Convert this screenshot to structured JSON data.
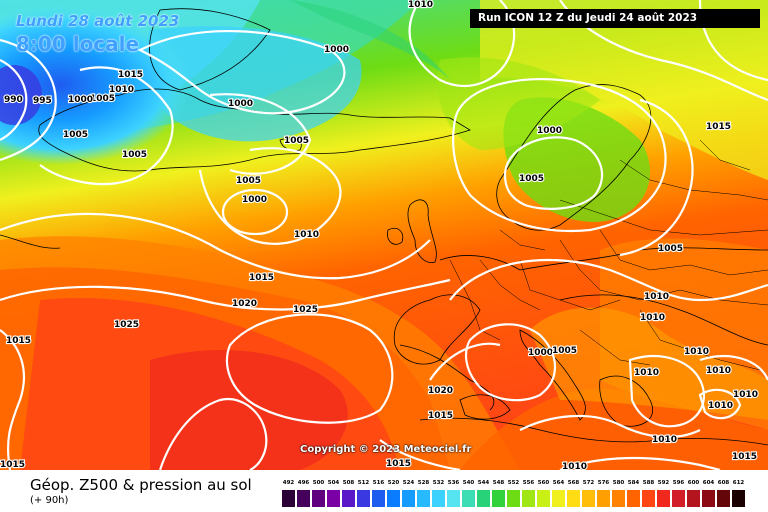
{
  "header": {
    "date_line_1": "Lundi 28 août 2023",
    "date_line_2": "8:00 locale",
    "run_info": "Run ICON 12 Z du Jeudi 24 août 2023"
  },
  "copyright": "Copyright © 2023 Meteociel.fr",
  "footer": {
    "title": "Géop. Z500 & pression au sol",
    "subtitle": "(+ 90h)"
  },
  "legend": {
    "labels": [
      "492",
      "496",
      "500",
      "504",
      "508",
      "512",
      "516",
      "520",
      "524",
      "528",
      "532",
      "536",
      "540",
      "544",
      "548",
      "552",
      "556",
      "560",
      "564",
      "568",
      "572",
      "576",
      "580",
      "584",
      "588",
      "592",
      "596",
      "600",
      "604",
      "608",
      "612"
    ],
    "colors": [
      "#2b0036",
      "#45005c",
      "#600080",
      "#7a00a6",
      "#5a18c8",
      "#3a38e0",
      "#1e5cf0",
      "#0a7cff",
      "#169cff",
      "#28baff",
      "#3cd2ff",
      "#55e4f0",
      "#3cdcb4",
      "#28d278",
      "#32d23c",
      "#6edc14",
      "#a0e614",
      "#c8f014",
      "#f0f01e",
      "#ffdc14",
      "#ffbe0a",
      "#ffa000",
      "#ff8200",
      "#ff6400",
      "#ff4614",
      "#f0281e",
      "#d21e28",
      "#b4141e",
      "#8c0a14",
      "#64050a",
      "#1a0000"
    ]
  },
  "map": {
    "colors": {
      "isobar_line": "#ffffff",
      "coastline": "#000000"
    },
    "isobar_labels": [
      "1010",
      "1000",
      "1015",
      "1010",
      "1005",
      "990",
      "995",
      "1000",
      "1005",
      "1000",
      "1005",
      "1005",
      "1005",
      "1000",
      "1010",
      "1015",
      "1020",
      "1025",
      "1025",
      "1015",
      "1000",
      "1005",
      "1015",
      "1005",
      "1010",
      "1010",
      "1000",
      "1005",
      "1020",
      "1015",
      "1010",
      "1010",
      "1010",
      "1010",
      "1010",
      "1010",
      "1010",
      "1015",
      "1015",
      "1015"
    ]
  }
}
